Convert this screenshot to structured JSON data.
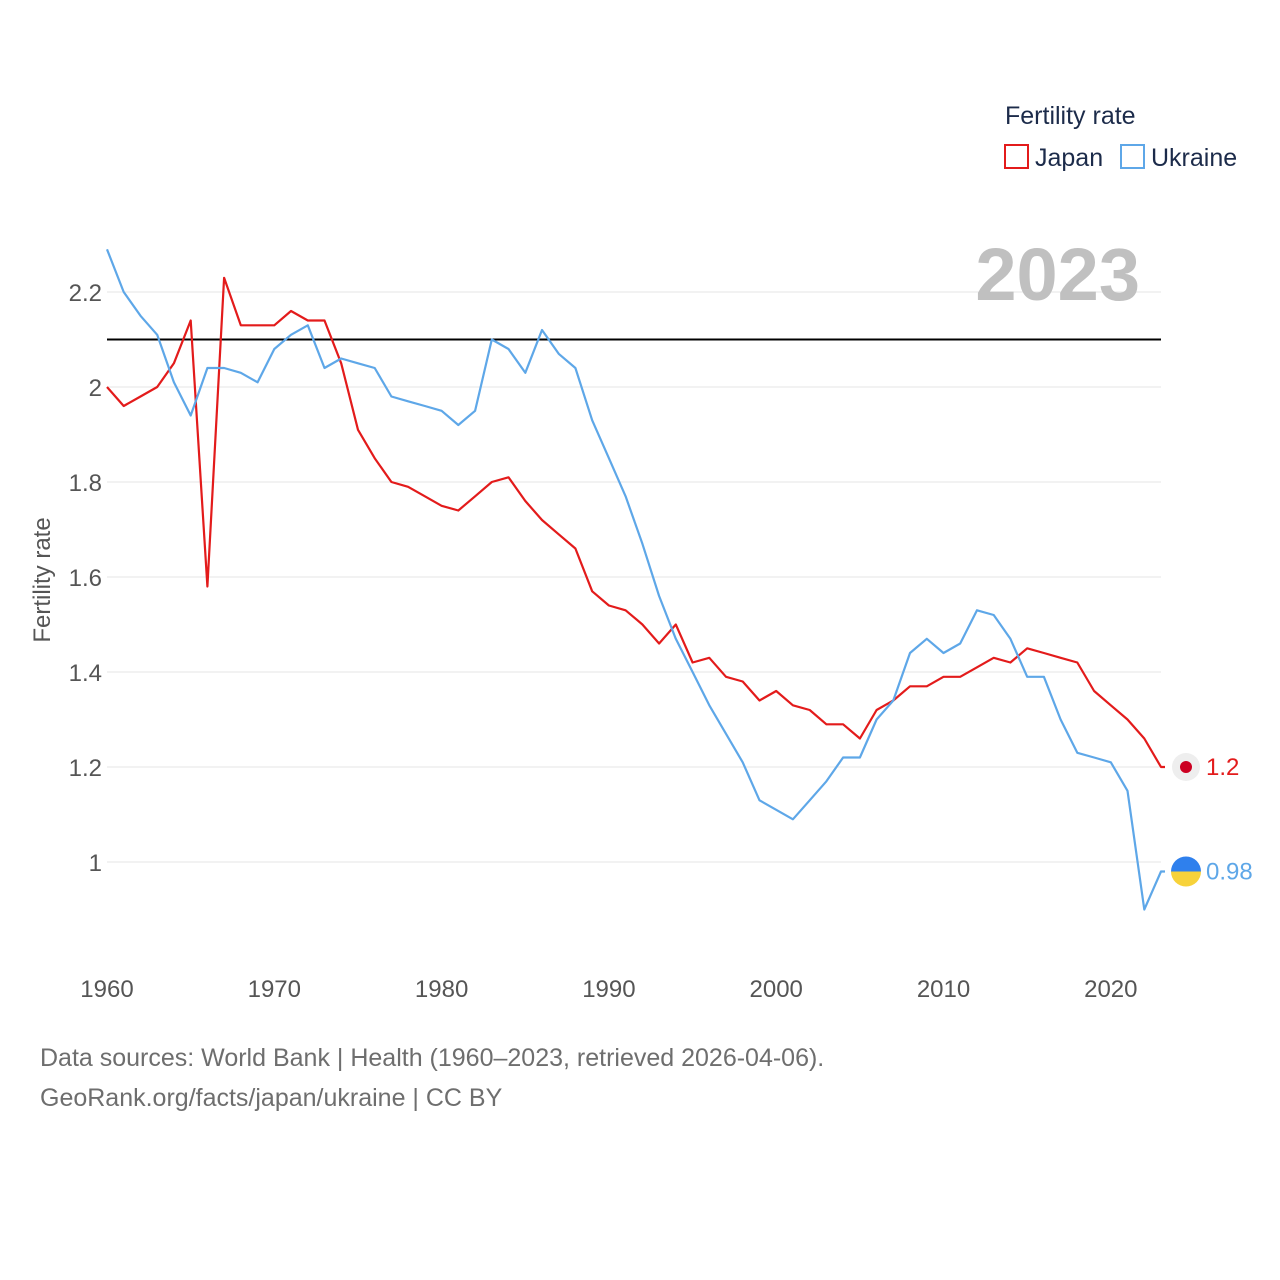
{
  "chart_data": {
    "type": "line",
    "title": "",
    "ylabel": "Fertility rate",
    "xlabel": "",
    "current_year": "2023",
    "legend_title": "Fertility rate",
    "legend_position": "top-right",
    "xlim": [
      1960,
      2023
    ],
    "ylim": [
      0.8,
      2.4
    ],
    "x_ticks": [
      1960,
      1970,
      1980,
      1990,
      2000,
      2010,
      2020
    ],
    "y_ticks": [
      1,
      1.2,
      1.4,
      1.6,
      1.8,
      2,
      2.2
    ],
    "y_tick_labels": [
      "1",
      "1.2",
      "1.4",
      "1.6",
      "1.8",
      "2",
      "2.2"
    ],
    "reference_line": 2.1,
    "grid": true,
    "x": [
      1960,
      1961,
      1962,
      1963,
      1964,
      1965,
      1966,
      1967,
      1968,
      1969,
      1970,
      1971,
      1972,
      1973,
      1974,
      1975,
      1976,
      1977,
      1978,
      1979,
      1980,
      1981,
      1982,
      1983,
      1984,
      1985,
      1986,
      1987,
      1988,
      1989,
      1990,
      1991,
      1992,
      1993,
      1994,
      1995,
      1996,
      1997,
      1998,
      1999,
      2000,
      2001,
      2002,
      2003,
      2004,
      2005,
      2006,
      2007,
      2008,
      2009,
      2010,
      2011,
      2012,
      2013,
      2014,
      2015,
      2016,
      2017,
      2018,
      2019,
      2020,
      2021,
      2022,
      2023
    ],
    "series": [
      {
        "name": "Japan",
        "color": "#e31b1b",
        "end_label": "1.2",
        "values": [
          2.0,
          1.96,
          1.98,
          2.0,
          2.05,
          2.14,
          1.58,
          2.23,
          2.13,
          2.13,
          2.13,
          2.16,
          2.14,
          2.14,
          2.05,
          1.91,
          1.85,
          1.8,
          1.79,
          1.77,
          1.75,
          1.74,
          1.77,
          1.8,
          1.81,
          1.76,
          1.72,
          1.69,
          1.66,
          1.57,
          1.54,
          1.53,
          1.5,
          1.46,
          1.5,
          1.42,
          1.43,
          1.39,
          1.38,
          1.34,
          1.36,
          1.33,
          1.32,
          1.29,
          1.29,
          1.26,
          1.32,
          1.34,
          1.37,
          1.37,
          1.39,
          1.39,
          1.41,
          1.43,
          1.42,
          1.45,
          1.44,
          1.43,
          1.42,
          1.36,
          1.33,
          1.3,
          1.26,
          1.2
        ]
      },
      {
        "name": "Ukraine",
        "color": "#5ea7e8",
        "end_label": "0.98",
        "values": [
          2.29,
          2.2,
          2.15,
          2.11,
          2.01,
          1.94,
          2.04,
          2.04,
          2.03,
          2.01,
          2.08,
          2.11,
          2.13,
          2.04,
          2.06,
          2.05,
          2.04,
          1.98,
          1.97,
          1.96,
          1.95,
          1.92,
          1.95,
          2.1,
          2.08,
          2.03,
          2.12,
          2.07,
          2.04,
          1.93,
          1.85,
          1.77,
          1.67,
          1.56,
          1.47,
          1.4,
          1.33,
          1.27,
          1.21,
          1.13,
          1.11,
          1.09,
          1.13,
          1.17,
          1.22,
          1.22,
          1.3,
          1.34,
          1.44,
          1.47,
          1.44,
          1.46,
          1.53,
          1.52,
          1.47,
          1.39,
          1.39,
          1.3,
          1.23,
          1.22,
          1.21,
          1.15,
          0.9,
          0.98
        ]
      }
    ]
  },
  "footer": {
    "line1": "Data sources: World Bank | Health (1960–2023, retrieved 2026-04-06).",
    "line2": "GeoRank.org/facts/japan/ukraine | CC BY"
  }
}
